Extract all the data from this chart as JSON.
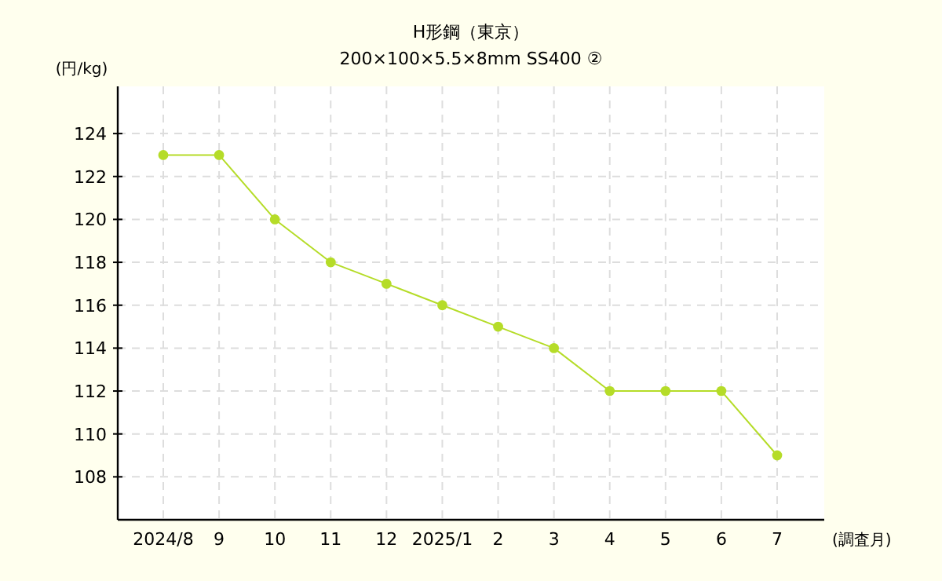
{
  "chart_data": {
    "type": "line",
    "title": "H形鋼（東京）",
    "subtitle": "200×100×5.5×8mm SS400 ②",
    "ylabel": "(円/kg)",
    "xlabel": "(調査月)",
    "categories": [
      "2024/8",
      "9",
      "10",
      "11",
      "12",
      "2025/1",
      "2",
      "3",
      "4",
      "5",
      "6",
      "7"
    ],
    "series": [
      {
        "color": "#b5dc28",
        "values": [
          123,
          123,
          120,
          118,
          117,
          116,
          115,
          114,
          112,
          112,
          112,
          109
        ]
      }
    ],
    "ylim": [
      106,
      126.2
    ],
    "yticks": [
      108,
      110,
      112,
      114,
      116,
      118,
      120,
      122,
      124
    ],
    "grid": true,
    "marker": "circle"
  }
}
